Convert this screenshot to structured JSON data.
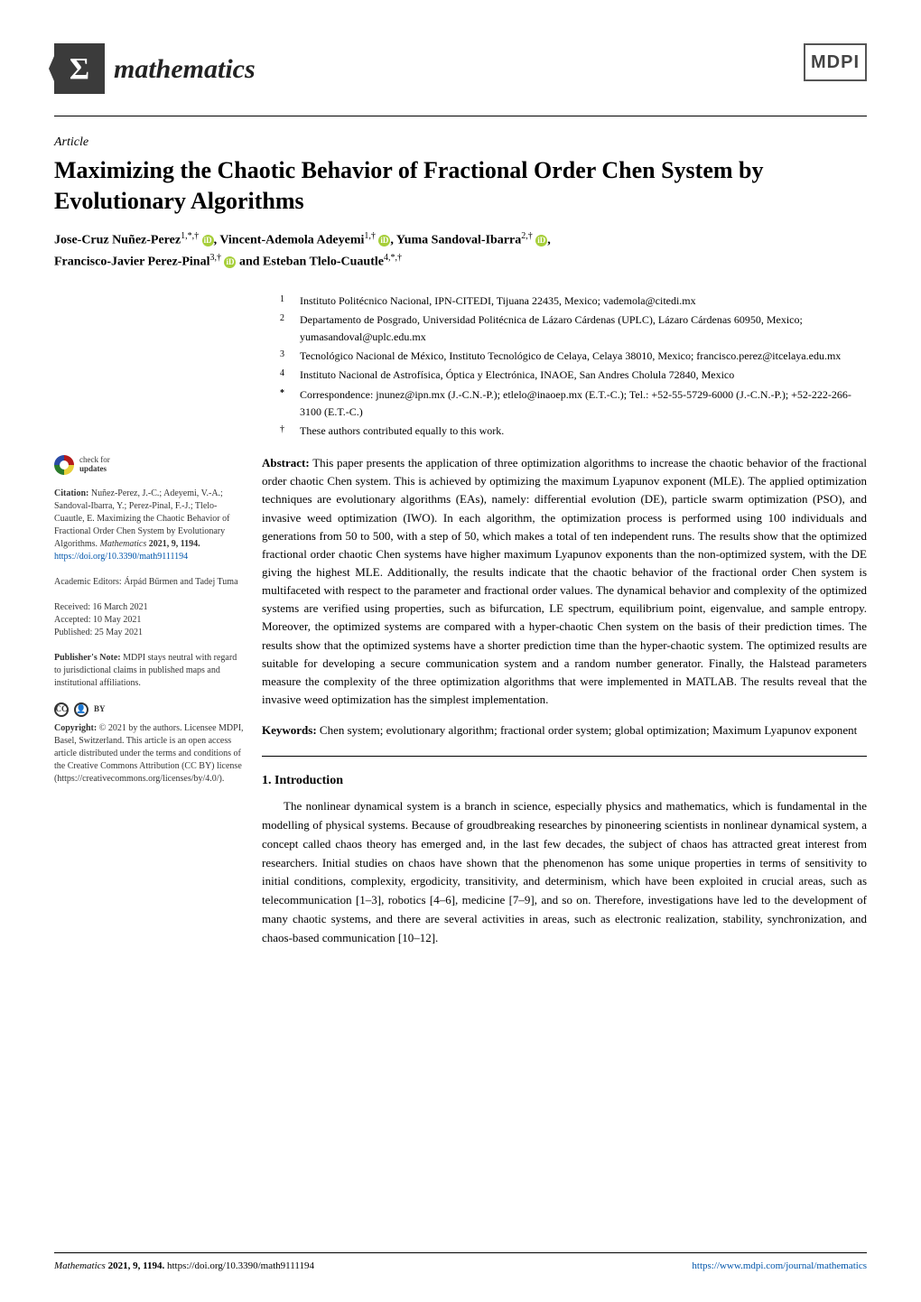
{
  "journal": {
    "name": "mathematics",
    "sigma": "Σ",
    "publisher_logo": "MDPI"
  },
  "article_type": "Article",
  "title": "Maximizing the Chaotic Behavior of Fractional Order Chen System by Evolutionary Algorithms",
  "authors_line1": "Jose-Cruz Nuñez-Perez",
  "authors_sup1": "1,*,†",
  "authors_line2": ", Vincent-Ademola Adeyemi",
  "authors_sup2": "1,†",
  "authors_line3": ", Yuma Sandoval-Ibarra",
  "authors_sup3": "2,†",
  "authors_line4": "Francisco-Javier Perez-Pinal",
  "authors_sup4": "3,†",
  "authors_line5": " and Esteban Tlelo-Cuautle",
  "authors_sup5": "4,*,†",
  "affiliations": [
    {
      "num": "1",
      "text": "Instituto Politécnico Nacional, IPN-CITEDI, Tijuana 22435, Mexico; vademola@citedi.mx"
    },
    {
      "num": "2",
      "text": "Departamento de Posgrado, Universidad Politécnica de Lázaro Cárdenas (UPLC), Lázaro Cárdenas 60950, Mexico; yumasandoval@uplc.edu.mx"
    },
    {
      "num": "3",
      "text": "Tecnológico Nacional de México, Instituto Tecnológico de Celaya, Celaya 38010, Mexico; francisco.perez@itcelaya.edu.mx"
    },
    {
      "num": "4",
      "text": "Instituto Nacional de Astrofísica, Óptica y Electrónica, INAOE, San Andres Cholula 72840, Mexico"
    },
    {
      "num": "*",
      "text": "Correspondence: jnunez@ipn.mx (J.-C.N.-P.); etlelo@inaoep.mx (E.T.-C.); Tel.: +52-55-5729-6000 (J.-C.N.-P.); +52-222-266-3100 (E.T.-C.)"
    },
    {
      "num": "†",
      "text": "These authors contributed equally to this work."
    }
  ],
  "abstract_label": "Abstract:",
  "abstract": " This paper presents the application of three optimization algorithms to increase the chaotic behavior of the fractional order chaotic Chen system. This is achieved by optimizing the maximum Lyapunov exponent (MLE). The applied optimization techniques are evolutionary algorithms (EAs), namely: differential evolution (DE), particle swarm optimization (PSO), and invasive weed optimization (IWO). In each algorithm, the optimization process is performed using 100 individuals and generations from 50 to 500, with a step of 50, which makes a total of ten independent runs. The results show that the optimized fractional order chaotic Chen systems have higher maximum Lyapunov exponents than the non-optimized system, with the DE giving the highest MLE. Additionally, the results indicate that the chaotic behavior of the fractional order Chen system is multifaceted with respect to the parameter and fractional order values. The dynamical behavior and complexity of the optimized systems are verified using properties, such as bifurcation, LE spectrum, equilibrium point, eigenvalue, and sample entropy. Moreover, the optimized systems are compared with a hyper-chaotic Chen system on the basis of their prediction times. The results show that the optimized systems have a shorter prediction time than the hyper-chaotic system. The optimized results are suitable for developing a secure communication system and a random number generator. Finally, the Halstead parameters measure the complexity of the three optimization algorithms that were implemented in MATLAB. The results reveal that the invasive weed optimization has the simplest implementation.",
  "keywords_label": "Keywords:",
  "keywords": " Chen system; evolutionary algorithm; fractional order system; global optimization; Maximum Lyapunov exponent",
  "section1_heading": "1. Introduction",
  "section1_body": "The nonlinear dynamical system is a branch in science, especially physics and mathematics, which is fundamental in the modelling of physical systems. Because of groudbreaking researches by pinoneering scientists in nonlinear dynamical system, a concept called chaos theory has emerged and, in the last few decades, the subject of chaos has attracted great interest from researchers. Initial studies on chaos have shown that the phenomenon has some unique properties in terms of sensitivity to initial conditions, complexity, ergodicity, transitivity, and determinism, which have been exploited in crucial areas, such as telecommunication [1–3], robotics [4–6], medicine [7–9], and so on. Therefore, investigations have led to the development of many chaotic systems, and there are several activities in areas, such as electronic realization, stability, synchronization, and chaos-based communication [10–12].",
  "sidebar": {
    "check_updates_l1": "check for",
    "check_updates_l2": "updates",
    "citation_label": "Citation:",
    "citation_text": " Nuñez-Perez, J.-C.; Adeyemi, V.-A.; Sandoval-Ibarra, Y.; Perez-Pinal, F.-J.; Tlelo-Cuautle, E. Maximizing the Chaotic Behavior of Fractional Order Chen System by Evolutionary Algorithms. ",
    "citation_journal": "Mathematics",
    "citation_ref": " 2021, 9, 1194. ",
    "citation_doi": "https://doi.org/10.3390/math9111194",
    "editors": "Academic Editors: Árpád Bűrmen and Tadej Tuma",
    "received": "Received: 16 March 2021",
    "accepted": "Accepted: 10 May 2021",
    "published": "Published: 25 May 2021",
    "pubnote_label": "Publisher's Note:",
    "pubnote": " MDPI stays neutral with regard to jurisdictional claims in published maps and institutional affiliations.",
    "cc_label": "CC",
    "by_label": "BY",
    "copyright_label": "Copyright:",
    "copyright": " © 2021 by the authors. Licensee MDPI, Basel, Switzerland. This article is an open access article distributed under the terms and conditions of the Creative Commons Attribution (CC BY) license (https://creativecommons.org/licenses/by/4.0/)."
  },
  "footer": {
    "left_journal": "Mathematics ",
    "left_ref": "2021, 9, 1194. ",
    "left_doi": "https://doi.org/10.3390/math9111194",
    "right": "https://www.mdpi.com/journal/mathematics"
  },
  "colors": {
    "orcid": "#a6ce39",
    "link": "#0055aa",
    "logo_bg": "#3b3b3b"
  }
}
